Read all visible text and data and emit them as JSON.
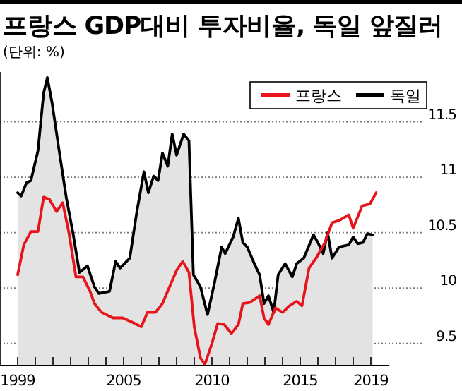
{
  "chart_data": {
    "type": "line",
    "title": "프랑스 GDP대비 투자비율, 독일 앞질러",
    "subtitle": "(단위: %)",
    "xlim": [
      1998,
      2020
    ],
    "ylim": [
      9.3,
      11.95
    ],
    "xticks": [
      1999,
      {
        "value": 2000,
        "label": null
      },
      {
        "value": 2001,
        "label": null
      },
      {
        "value": 2002,
        "label": null
      },
      {
        "value": 2003,
        "label": null
      },
      {
        "value": 2004,
        "label": null
      },
      2005,
      {
        "value": 2006,
        "label": null
      },
      {
        "value": 2007,
        "label": null
      },
      {
        "value": 2008,
        "label": null
      },
      {
        "value": 2009,
        "label": null
      },
      2010,
      {
        "value": 2011,
        "label": null
      },
      {
        "value": 2012,
        "label": null
      },
      {
        "value": 2013,
        "label": null
      },
      {
        "value": 2014,
        "label": null
      },
      2015,
      {
        "value": 2016,
        "label": null
      },
      {
        "value": 2017,
        "label": null
      },
      {
        "value": 2018,
        "label": null
      },
      2019
    ],
    "yticks": [
      9.5,
      10,
      10.5,
      11,
      11.5
    ],
    "grid": "y",
    "legend": "top right",
    "series": [
      {
        "name": "프랑스",
        "type": "line",
        "color": "#e8141c",
        "x": [
          1999.0,
          1999.35,
          1999.75,
          2000.15,
          2000.47,
          2000.8,
          2001.2,
          2001.55,
          2001.9,
          2002.3,
          2002.7,
          2003.1,
          2003.35,
          2003.75,
          2004.4,
          2004.95,
          2005.5,
          2006.0,
          2006.35,
          2006.8,
          2007.2,
          2007.6,
          2008.0,
          2008.35,
          2008.7,
          2009.0,
          2009.35,
          2009.6,
          2010.0,
          2010.33,
          2010.7,
          2011.1,
          2011.5,
          2011.75,
          2012.15,
          2012.7,
          2012.95,
          2013.2,
          2013.6,
          2014.0,
          2014.4,
          2014.8,
          2015.1,
          2015.5,
          2015.9,
          2016.4,
          2016.8,
          2017.2,
          2017.75,
          2018.0,
          2018.5,
          2018.95,
          2019.3
        ],
        "values": [
          10.12,
          10.39,
          10.51,
          10.51,
          10.82,
          10.8,
          10.69,
          10.77,
          10.5,
          10.1,
          10.1,
          9.97,
          9.86,
          9.78,
          9.73,
          9.73,
          9.69,
          9.65,
          9.78,
          9.78,
          9.86,
          10.01,
          10.16,
          10.24,
          10.14,
          9.65,
          9.37,
          9.31,
          9.5,
          9.68,
          9.67,
          9.59,
          9.67,
          9.86,
          9.87,
          9.93,
          9.73,
          9.67,
          9.82,
          9.78,
          9.84,
          9.88,
          9.84,
          10.18,
          10.27,
          10.41,
          10.59,
          10.61,
          10.66,
          10.54,
          10.74,
          10.76,
          10.86
        ]
      },
      {
        "name": "독일",
        "type": "area",
        "color": "#000000",
        "x": [
          1999.0,
          1999.2,
          1999.5,
          1999.75,
          2000.15,
          2000.47,
          2000.68,
          2000.95,
          2001.35,
          2001.75,
          2002.15,
          2002.5,
          2002.95,
          2003.35,
          2003.6,
          2004.2,
          2004.55,
          2004.8,
          2005.35,
          2005.75,
          2006.15,
          2006.4,
          2006.7,
          2006.95,
          2007.2,
          2007.5,
          2007.75,
          2008.0,
          2008.4,
          2008.7,
          2008.95,
          2009.35,
          2009.75,
          2010.15,
          2010.55,
          2010.75,
          2011.2,
          2011.5,
          2011.75,
          2012.0,
          2012.4,
          2012.7,
          2012.95,
          2013.2,
          2013.5,
          2013.75,
          2014.15,
          2014.55,
          2014.8,
          2015.2,
          2015.75,
          2016.0,
          2016.3,
          2016.55,
          2016.8,
          2017.2,
          2017.75,
          2018.0,
          2018.25,
          2018.55,
          2018.8,
          2019.1
        ],
        "values": [
          10.86,
          10.83,
          10.95,
          10.97,
          11.24,
          11.76,
          11.9,
          11.67,
          11.24,
          10.82,
          10.48,
          10.14,
          10.2,
          10.01,
          9.95,
          9.97,
          10.24,
          10.18,
          10.27,
          10.69,
          11.05,
          10.86,
          11.01,
          10.97,
          11.22,
          11.1,
          11.39,
          11.2,
          11.39,
          11.33,
          10.12,
          10.01,
          9.76,
          10.05,
          10.37,
          10.31,
          10.46,
          10.63,
          10.41,
          10.37,
          10.22,
          10.12,
          9.86,
          9.93,
          9.78,
          10.12,
          10.22,
          10.1,
          10.22,
          10.27,
          10.48,
          10.41,
          10.31,
          10.5,
          10.27,
          10.37,
          10.39,
          10.46,
          10.4,
          10.41,
          10.49,
          10.48
        ]
      }
    ]
  }
}
